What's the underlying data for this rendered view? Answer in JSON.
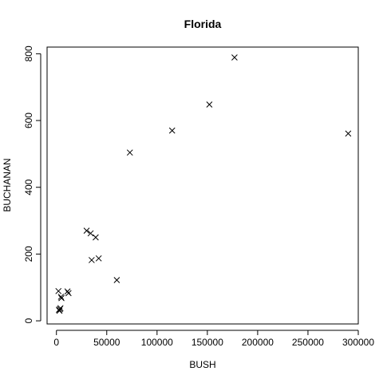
{
  "chart_data": {
    "type": "scatter",
    "title": "Florida",
    "xlabel": "BUSH",
    "ylabel": "BUCHANAN",
    "xlim": [
      -7000,
      300000
    ],
    "ylim": [
      -7000,
      820000
    ],
    "ylim_note": "",
    "xticks": [
      0,
      50000,
      100000,
      150000,
      200000,
      250000,
      300000
    ],
    "xtick_labels": [
      "0",
      "50000",
      "100000",
      "150000",
      "200000",
      "250000",
      "300000"
    ],
    "yticks": [
      0,
      200,
      400,
      600,
      800
    ],
    "ytick_labels": [
      "0",
      "200",
      "400",
      "600",
      "800"
    ],
    "grid": false,
    "marker": "x",
    "points": [
      {
        "x": 290000,
        "y": 561
      },
      {
        "x": 177000,
        "y": 789
      },
      {
        "x": 152000,
        "y": 648
      },
      {
        "x": 115000,
        "y": 570
      },
      {
        "x": 73000,
        "y": 504
      },
      {
        "x": 60000,
        "y": 122
      },
      {
        "x": 42000,
        "y": 187
      },
      {
        "x": 39000,
        "y": 250
      },
      {
        "x": 35000,
        "y": 182
      },
      {
        "x": 34000,
        "y": 262
      },
      {
        "x": 30000,
        "y": 270
      },
      {
        "x": 12000,
        "y": 83
      },
      {
        "x": 11000,
        "y": 88
      },
      {
        "x": 5000,
        "y": 68
      },
      {
        "x": 4500,
        "y": 72
      },
      {
        "x": 4000,
        "y": 38
      },
      {
        "x": 3500,
        "y": 35
      },
      {
        "x": 3000,
        "y": 30
      },
      {
        "x": 2500,
        "y": 33
      },
      {
        "x": 2000,
        "y": 89
      }
    ]
  }
}
